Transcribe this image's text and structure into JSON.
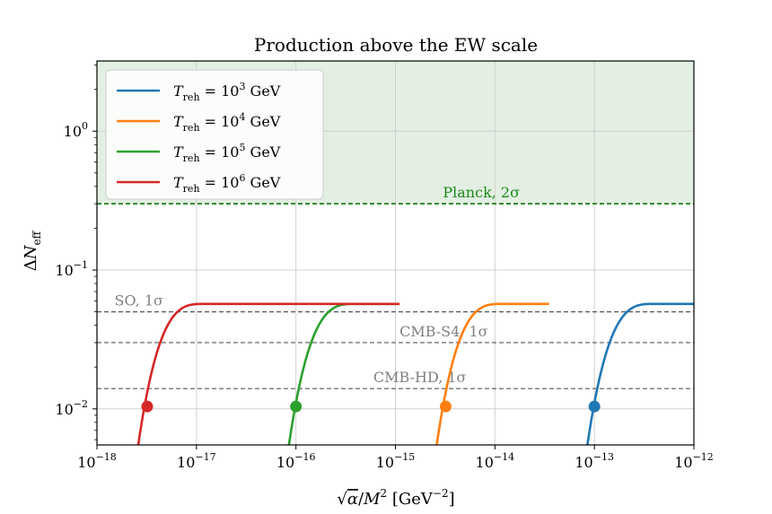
{
  "chart_data": {
    "type": "line",
    "title": "Production above the EW scale",
    "xlabel": "√α/M² [GeV⁻²]",
    "ylabel": "ΔN_eff",
    "xscale": "log",
    "yscale": "log",
    "xlim": [
      1e-18,
      1e-12
    ],
    "ylim": [
      0.0055,
      3.2
    ],
    "grid": true,
    "legend_position": "top-left",
    "x_ticks": [
      {
        "base": "10",
        "exp": "−18",
        "value": 1e-18
      },
      {
        "base": "10",
        "exp": "−17",
        "value": 1e-17
      },
      {
        "base": "10",
        "exp": "−16",
        "value": 1e-16
      },
      {
        "base": "10",
        "exp": "−15",
        "value": 1e-15
      },
      {
        "base": "10",
        "exp": "−14",
        "value": 1e-14
      },
      {
        "base": "10",
        "exp": "−13",
        "value": 1e-13
      },
      {
        "base": "10",
        "exp": "−12",
        "value": 1e-12
      }
    ],
    "y_ticks": [
      {
        "base": "10",
        "exp": "−2",
        "value": 0.01
      },
      {
        "base": "10",
        "exp": "−1",
        "value": 0.1
      },
      {
        "base": "10",
        "exp": "0",
        "value": 1
      }
    ],
    "plateau": 0.057,
    "series": [
      {
        "name": "T_reh = 10³ GeV",
        "label_main": "T",
        "label_sub": "reh",
        "label_eq": " = 10",
        "label_exp": "3",
        "label_unit": " GeV",
        "color": "#1f77b4",
        "x_start": 8.5e-14,
        "x_sat": 4e-13,
        "x_end": 1e-12,
        "marker": [
          1e-13,
          0.0104
        ]
      },
      {
        "name": "T_reh = 10⁴ GeV",
        "label_main": "T",
        "label_sub": "reh",
        "label_eq": " = 10",
        "label_exp": "4",
        "label_unit": " GeV",
        "color": "#ff7f0e",
        "x_start": 2.6e-15,
        "x_sat": 1.2e-14,
        "x_end": 3.5e-14,
        "marker": [
          3.2e-15,
          0.0104
        ]
      },
      {
        "name": "T_reh = 10⁵ GeV",
        "label_main": "T",
        "label_sub": "reh",
        "label_eq": " = 10",
        "label_exp": "5",
        "label_unit": " GeV",
        "color": "#2ca02c",
        "x_start": 8.5e-17,
        "x_sat": 4e-16,
        "x_end": 1.1e-15,
        "marker": [
          1e-16,
          0.0104
        ]
      },
      {
        "name": "T_reh = 10⁶ GeV",
        "label_main": "T",
        "label_sub": "reh",
        "label_eq": " = 10",
        "label_exp": "6",
        "label_unit": " GeV",
        "color": "#d62728",
        "x_start": 2.6e-18,
        "x_sat": 1.2e-17,
        "x_end": 1.1e-15,
        "marker": [
          3.2e-18,
          0.0104
        ]
      }
    ],
    "reference_lines": [
      {
        "label": "Planck, 2σ",
        "value": 0.3,
        "color": "#1a8a1a",
        "label_x": 3e-15,
        "style": "planck"
      },
      {
        "label": "SO, 1σ",
        "value": 0.05,
        "color": "#808080",
        "label_x": 1.5e-18,
        "style": "gray"
      },
      {
        "label": "CMB-S4, 1σ",
        "value": 0.03,
        "color": "#808080",
        "label_x": 1.1e-15,
        "style": "gray"
      },
      {
        "label": "CMB-HD, 1σ",
        "value": 0.014,
        "color": "#808080",
        "label_x": 6e-16,
        "style": "gray"
      }
    ],
    "excluded_region": {
      "from": 0.3,
      "to": 3.2,
      "color": "#e3efe3"
    }
  }
}
